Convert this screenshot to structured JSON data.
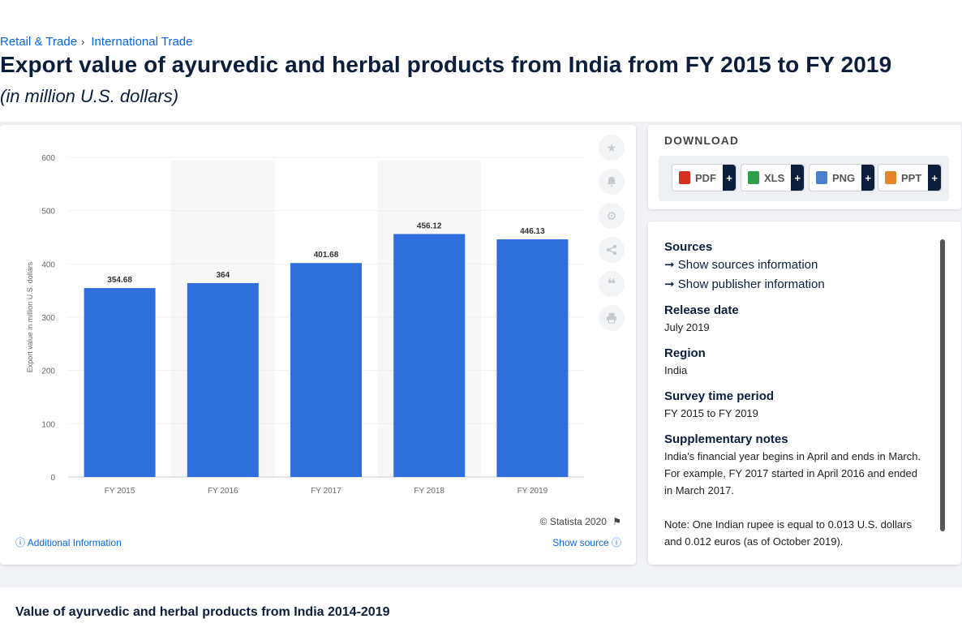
{
  "breadcrumbs": [
    "Retail & Trade",
    "International Trade"
  ],
  "breadcrumb_sep": "›",
  "title": "Export value of ayurvedic and herbal products from India from FY 2015 to FY 2019",
  "subtitle": "(in million U.S. dollars)",
  "chart_data": {
    "type": "bar",
    "categories": [
      "FY 2015",
      "FY 2016",
      "FY 2017",
      "FY 2018",
      "FY 2019"
    ],
    "values": [
      354.68,
      364,
      401.68,
      456.12,
      446.13
    ],
    "value_labels": [
      "354.68",
      "364",
      "401.68",
      "456.12",
      "446.13"
    ],
    "title": "",
    "xlabel": "",
    "ylabel": "Export value in million U.S. dollars",
    "ylim": [
      0,
      600
    ],
    "yticks": [
      0,
      100,
      200,
      300,
      400,
      500,
      600
    ],
    "grid": true,
    "bar_color": "#2f6fdb"
  },
  "copyright": "© Statista 2020",
  "additional_info": "Additional Information",
  "show_source": "Show source",
  "download": {
    "title": "DOWNLOAD",
    "buttons": [
      {
        "label": "PDF",
        "color": "#d93025"
      },
      {
        "label": "XLS",
        "color": "#2e9e48"
      },
      {
        "label": "PNG",
        "color": "#4a7fd0"
      },
      {
        "label": "PPT",
        "color": "#e8852a"
      }
    ],
    "plus": "+"
  },
  "info": {
    "sources_heading": "Sources",
    "show_sources": "Show sources information",
    "show_publisher": "Show publisher information",
    "release_heading": "Release date",
    "release_value": "July 2019",
    "region_heading": "Region",
    "region_value": "India",
    "survey_heading": "Survey time period",
    "survey_value": "FY 2015 to FY 2019",
    "notes_heading": "Supplementary notes",
    "notes_1": "India's financial year begins in April and ends in March. For example, FY 2017 started in April 2016 and ended in March 2017.",
    "notes_2": "Note: One Indian rupee is equal to 0.013 U.S. dollars and 0.012 euros (as of October 2019)."
  },
  "bottom_title": "Value of ayurvedic and herbal products from India 2014-2019"
}
